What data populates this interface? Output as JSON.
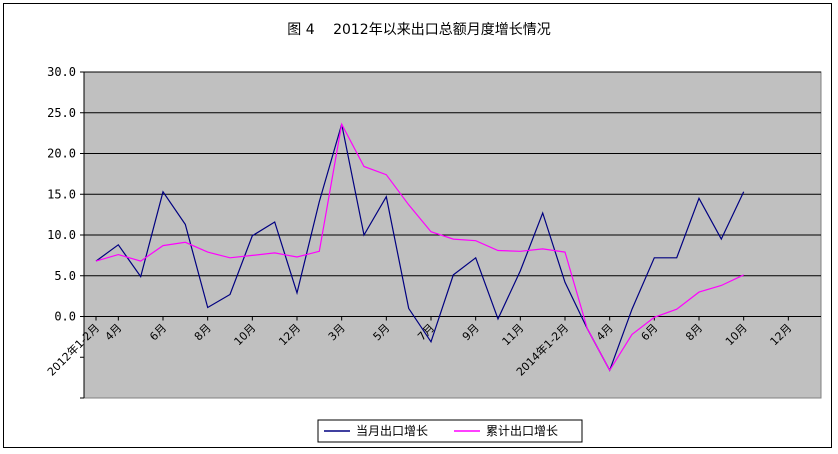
{
  "chart_data": {
    "type": "line",
    "title": "图 4　 2012年以来出口总额月度增长情况",
    "xlabel": "",
    "ylabel": "",
    "ylim": [
      -10,
      30
    ],
    "yticks": [
      "30.0",
      "25.0",
      "20.0",
      "15.0",
      "10.0",
      "5.0",
      "0.0"
    ],
    "grid": true,
    "legend_position": "bottom",
    "x_tick_labels": [
      {
        "index": 0,
        "label": "2012年1-2月"
      },
      {
        "index": 1,
        "label": "4月"
      },
      {
        "index": 3,
        "label": "6月"
      },
      {
        "index": 5,
        "label": "8月"
      },
      {
        "index": 7,
        "label": "10月"
      },
      {
        "index": 9,
        "label": "12月"
      },
      {
        "index": 11,
        "label": "3月"
      },
      {
        "index": 13,
        "label": "5月"
      },
      {
        "index": 15,
        "label": "7月"
      },
      {
        "index": 17,
        "label": "9月"
      },
      {
        "index": 19,
        "label": "11月"
      },
      {
        "index": 21,
        "label": "2014年1-2月"
      },
      {
        "index": 23,
        "label": "4月"
      },
      {
        "index": 25,
        "label": "6月"
      },
      {
        "index": 27,
        "label": "8月"
      },
      {
        "index": 29,
        "label": "10月"
      },
      {
        "index": 31,
        "label": "12月"
      }
    ],
    "n_points": 33,
    "series": [
      {
        "name": "当月出口增长",
        "color": "#000080",
        "values": [
          6.8,
          8.8,
          4.9,
          15.3,
          11.3,
          1.1,
          2.7,
          9.9,
          11.6,
          2.9,
          14.1,
          23.6,
          10.0,
          14.7,
          1.0,
          -3.1,
          5.1,
          7.2,
          -0.3,
          5.6,
          12.7,
          4.2,
          -1.5,
          -6.6,
          0.9,
          7.2,
          7.2,
          14.5,
          9.5,
          15.3,
          null,
          null,
          null
        ]
      },
      {
        "name": "累计出口增长",
        "color": "#ff00ff",
        "values": [
          6.8,
          7.6,
          6.8,
          8.7,
          9.1,
          7.9,
          7.2,
          7.5,
          7.8,
          7.3,
          8.0,
          23.6,
          18.4,
          17.4,
          13.7,
          10.4,
          9.5,
          9.3,
          8.1,
          8.0,
          8.3,
          7.9,
          -1.5,
          -6.6,
          -2.2,
          -0.1,
          0.9,
          3.0,
          3.8,
          5.1,
          null,
          null,
          null
        ]
      }
    ]
  }
}
